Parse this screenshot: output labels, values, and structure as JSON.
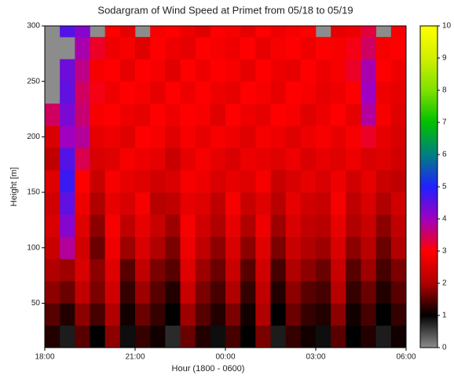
{
  "chart_data": {
    "type": "heatmap",
    "title": "Sodargram of Wind Speed at Primet from 05/18 to 05/19",
    "x_label": "Hour (1800 - 0600)",
    "y_label": "Height [m]",
    "xlim": [
      0,
      12
    ],
    "xticks": [
      {
        "value": 0,
        "label": "18:00"
      },
      {
        "value": 3,
        "label": "21:00"
      },
      {
        "value": 6,
        "label": "00:00"
      },
      {
        "value": 9,
        "label": "03:00"
      },
      {
        "value": 12,
        "label": "06:00"
      }
    ],
    "ylim": [
      10,
      300
    ],
    "yticks": [
      50,
      100,
      150,
      200,
      250,
      300
    ],
    "zlim": [
      0,
      10
    ],
    "zticks": [
      0,
      1,
      2,
      3,
      4,
      5,
      6,
      7,
      8,
      9,
      10
    ],
    "colors": [
      "#8c8c8c",
      "#000000",
      "#b00000",
      "#ff0000",
      "#a000c0",
      "#2020ff",
      "#008080",
      "#00c000",
      "#80e000",
      "#d0f000",
      "#ffff00"
    ],
    "missing_color": "#8c8c8c",
    "x_bins": [
      0,
      0.5,
      1,
      1.5,
      2,
      2.5,
      3,
      3.5,
      4,
      4.5,
      5,
      5.5,
      6,
      6.5,
      7,
      7.5,
      8,
      8.5,
      9,
      9.5,
      10,
      10.5,
      11,
      11.5,
      12
    ],
    "y_bins": [
      10,
      30,
      50,
      70,
      90,
      110,
      130,
      150,
      170,
      190,
      210,
      230,
      250,
      270,
      290,
      300
    ],
    "z": [
      [
        1.2,
        0.8,
        1.5,
        1.0,
        1.8,
        0.9,
        1.3,
        1.1,
        0.7,
        1.6,
        1.2,
        0.9,
        1.4,
        1.0,
        1.7,
        0.8,
        1.3,
        1.1,
        0.9,
        1.5,
        1.0,
        1.2,
        0.8,
        1.1
      ],
      [
        1.5,
        1.2,
        1.8,
        1.4,
        2.0,
        1.1,
        1.6,
        1.3,
        1.0,
        1.9,
        1.5,
        1.2,
        1.7,
        1.1,
        2.0,
        1.0,
        1.6,
        1.3,
        1.2,
        1.8,
        1.1,
        1.4,
        1.0,
        1.3
      ],
      [
        1.8,
        1.6,
        2.2,
        1.7,
        2.4,
        1.3,
        1.9,
        1.5,
        1.2,
        2.3,
        1.7,
        1.4,
        2.0,
        1.3,
        2.2,
        1.2,
        1.8,
        1.5,
        1.4,
        2.1,
        1.3,
        1.6,
        1.2,
        1.5
      ],
      [
        2.0,
        1.9,
        2.5,
        1.8,
        2.6,
        1.5,
        2.2,
        1.7,
        1.5,
        2.6,
        1.9,
        1.6,
        2.3,
        1.5,
        2.4,
        1.4,
        2.0,
        1.8,
        1.6,
        2.3,
        1.5,
        1.9,
        1.4,
        1.7
      ],
      [
        2.3,
        3.8,
        2.4,
        1.6,
        2.8,
        1.9,
        2.5,
        2.0,
        1.7,
        2.8,
        2.2,
        1.8,
        2.5,
        1.8,
        2.6,
        1.7,
        2.3,
        2.0,
        1.9,
        2.5,
        1.8,
        2.1,
        1.6,
        2.0
      ],
      [
        2.5,
        4.2,
        2.6,
        1.8,
        2.9,
        2.2,
        2.7,
        2.3,
        1.9,
        2.9,
        2.4,
        2.0,
        2.7,
        2.0,
        2.8,
        1.9,
        2.5,
        2.2,
        2.1,
        2.7,
        2.0,
        2.3,
        1.8,
        2.2
      ],
      [
        2.4,
        4.5,
        2.8,
        2.0,
        2.7,
        2.5,
        2.9,
        2.1,
        2.2,
        2.7,
        2.6,
        2.2,
        2.9,
        2.3,
        2.6,
        2.1,
        2.7,
        2.4,
        2.3,
        2.9,
        2.2,
        2.5,
        2.0,
        2.4
      ],
      [
        2.6,
        4.8,
        3.0,
        2.3,
        2.9,
        2.7,
        2.6,
        2.4,
        2.5,
        2.9,
        2.8,
        2.5,
        2.7,
        2.6,
        2.9,
        2.3,
        2.5,
        2.7,
        2.5,
        2.8,
        2.4,
        2.7,
        2.3,
        2.2
      ],
      [
        2.2,
        4.6,
        3.4,
        2.5,
        2.6,
        2.9,
        2.8,
        2.7,
        2.3,
        2.7,
        2.9,
        2.7,
        2.5,
        2.8,
        2.7,
        2.6,
        2.8,
        2.5,
        2.7,
        2.6,
        2.8,
        2.5,
        2.6,
        2.4
      ],
      [
        2.5,
        4.0,
        3.8,
        2.7,
        2.8,
        2.6,
        3.0,
        2.9,
        2.6,
        2.9,
        2.7,
        2.9,
        2.8,
        2.6,
        2.9,
        2.8,
        2.6,
        2.8,
        2.9,
        2.7,
        2.9,
        3.2,
        2.7,
        2.5
      ],
      [
        3.5,
        4.3,
        3.6,
        2.9,
        3.0,
        2.8,
        2.7,
        3.0,
        2.8,
        3.0,
        2.9,
        2.6,
        3.0,
        2.8,
        2.7,
        3.0,
        2.9,
        2.6,
        2.8,
        3.0,
        2.7,
        3.8,
        2.9,
        2.6
      ],
      [
        null,
        4.5,
        3.5,
        3.1,
        2.8,
        3.0,
        2.9,
        2.7,
        3.0,
        2.8,
        3.0,
        2.8,
        2.7,
        3.0,
        2.9,
        2.7,
        3.0,
        2.9,
        2.7,
        2.8,
        3.0,
        4.0,
        2.8,
        2.7
      ],
      [
        null,
        4.4,
        3.7,
        2.9,
        3.0,
        2.7,
        3.0,
        2.9,
        2.6,
        3.0,
        2.8,
        3.0,
        2.9,
        2.7,
        3.0,
        2.8,
        2.7,
        3.0,
        2.8,
        2.9,
        3.2,
        3.9,
        3.0,
        2.8
      ],
      [
        null,
        null,
        3.9,
        3.2,
        2.8,
        2.9,
        2.6,
        3.0,
        2.8,
        2.7,
        3.0,
        2.9,
        2.8,
        3.0,
        2.7,
        2.9,
        3.0,
        2.8,
        3.0,
        2.9,
        3.1,
        3.5,
        2.9,
        3.0
      ],
      [
        null,
        4.6,
        4.2,
        null,
        3.0,
        2.7,
        null,
        2.9,
        3.0,
        2.8,
        2.6,
        3.0,
        2.9,
        2.7,
        3.0,
        2.8,
        2.9,
        3.0,
        null,
        2.7,
        2.8,
        3.3,
        null,
        2.9
      ]
    ]
  }
}
